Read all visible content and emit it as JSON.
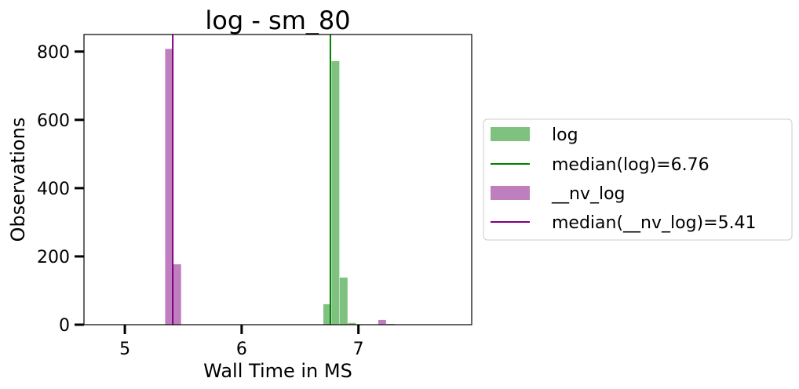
{
  "chart_data": {
    "type": "bar",
    "title": "log - sm_80",
    "xlabel": "Wall Time in MS",
    "ylabel": "Observations",
    "xlim": [
      4.65,
      7.97
    ],
    "ylim": [
      0,
      850
    ],
    "xticks": [
      5,
      6,
      7
    ],
    "yticks": [
      0,
      200,
      400,
      600,
      800
    ],
    "grid": false,
    "legend_position": "outside-right",
    "bin_width": 0.07,
    "series": [
      {
        "name": "log",
        "color": "#7fc17f",
        "bins": [
          {
            "x": 6.735,
            "y": 60
          },
          {
            "x": 6.805,
            "y": 772
          },
          {
            "x": 6.875,
            "y": 138
          },
          {
            "x": 6.945,
            "y": 5
          },
          {
            "x": 7.015,
            "y": 1
          }
        ]
      },
      {
        "name": "__nv_log",
        "color": "#bf7fbf",
        "bins": [
          {
            "x": 5.38,
            "y": 808
          },
          {
            "x": 5.45,
            "y": 177
          },
          {
            "x": 7.205,
            "y": 14
          },
          {
            "x": 7.275,
            "y": 2
          }
        ]
      }
    ],
    "medians": [
      {
        "label": "median(log)=6.76",
        "value": 6.76,
        "color": "#007f00"
      },
      {
        "label": "median(__nv_log)=5.41",
        "value": 5.41,
        "color": "#7f007f"
      }
    ],
    "legend": [
      {
        "label": "log",
        "kind": "patch",
        "color": "#7fc17f"
      },
      {
        "label": "median(log)=6.76",
        "kind": "line",
        "color": "#007f00"
      },
      {
        "label": "__nv_log",
        "kind": "patch",
        "color": "#bf7fbf"
      },
      {
        "label": "median(__nv_log)=5.41",
        "kind": "line",
        "color": "#7f007f"
      }
    ]
  }
}
